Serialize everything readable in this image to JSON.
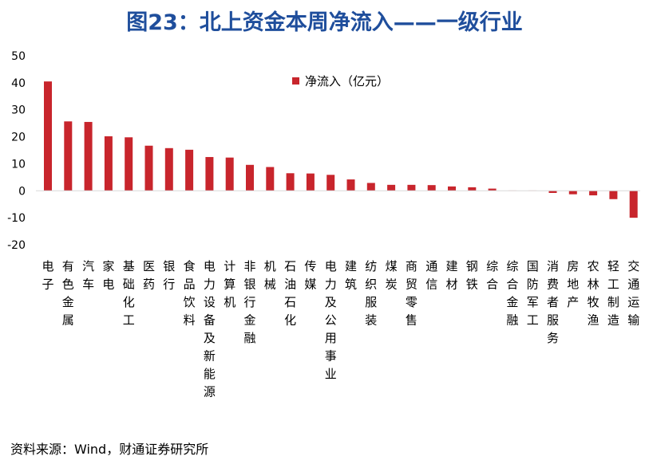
{
  "title": "图23：北上资金本周净流入——一级行业",
  "source": "资料来源：Wind，财通证券研究所",
  "colors": {
    "bar": "#c8252c",
    "title": "#1f4e9c",
    "axis": "#d9d9d9"
  },
  "chart_data": {
    "type": "bar",
    "title": "图23：北上资金本周净流入——一级行业",
    "xlabel": "",
    "ylabel": "",
    "ylim": [
      -20,
      50
    ],
    "yticks": [
      50,
      40,
      30,
      20,
      10,
      0,
      -10,
      -20
    ],
    "grid": false,
    "legend_position": "top-center",
    "categories": [
      "电子",
      "有色金属",
      "汽车",
      "家电",
      "基础化工",
      "医药",
      "银行",
      "食品饮料",
      "电力设备及新能源",
      "计算机",
      "非银行金融",
      "机械",
      "石油石化",
      "传媒",
      "电力及公用事业",
      "建筑",
      "纺织服装",
      "煤炭",
      "商贸零售",
      "通信",
      "建材",
      "钢铁",
      "综合",
      "综合金融",
      "国防军工",
      "消费者服务",
      "房地产",
      "农林牧渔",
      "轻工制造",
      "交通运输"
    ],
    "series": [
      {
        "name": "净流入（亿元）",
        "values": [
          40.5,
          25.7,
          25.5,
          20.2,
          19.8,
          16.7,
          15.8,
          15.2,
          12.5,
          12.3,
          9.6,
          8.8,
          6.5,
          6.4,
          5.9,
          4.2,
          2.9,
          2.2,
          2.2,
          2.1,
          1.6,
          1.3,
          0.8,
          0.1,
          0.1,
          -0.8,
          -1.3,
          -1.7,
          -3.1,
          -10.0
        ]
      }
    ]
  }
}
